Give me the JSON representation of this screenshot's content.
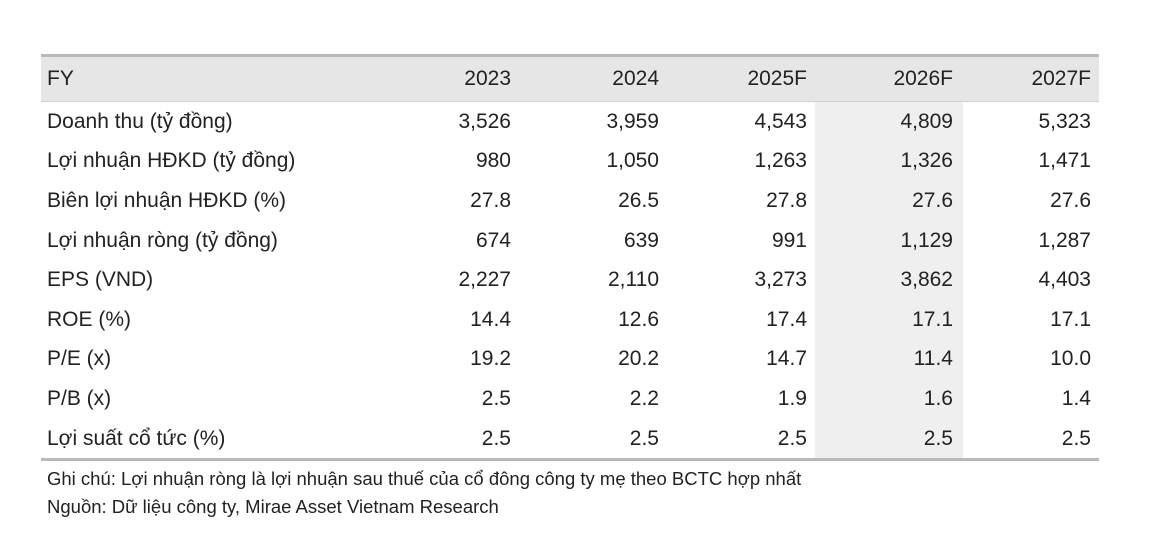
{
  "table": {
    "header": [
      "FY",
      "2023",
      "2024",
      "2025F",
      "2026F",
      "2027F"
    ],
    "rows": [
      {
        "label": "Doanh thu (tỷ đồng)",
        "values": [
          "3,526",
          "3,959",
          "4,543",
          "4,809",
          "5,323"
        ]
      },
      {
        "label": "Lợi nhuận HĐKD (tỷ đồng)",
        "values": [
          "980",
          "1,050",
          "1,263",
          "1,326",
          "1,471"
        ]
      },
      {
        "label": "Biên lợi nhuận HĐKD (%)",
        "values": [
          "27.8",
          "26.5",
          "27.8",
          "27.6",
          "27.6"
        ]
      },
      {
        "label": "Lợi nhuận ròng (tỷ đồng)",
        "values": [
          "674",
          "639",
          "991",
          "1,129",
          "1,287"
        ]
      },
      {
        "label": "EPS (VND)",
        "values": [
          "2,227",
          "2,110",
          "3,273",
          "3,862",
          "4,403"
        ]
      },
      {
        "label": "ROE (%)",
        "values": [
          "14.4",
          "12.6",
          "17.4",
          "17.1",
          "17.1"
        ]
      },
      {
        "label": "P/E (x)",
        "values": [
          "19.2",
          "20.2",
          "14.7",
          "11.4",
          "10.0"
        ]
      },
      {
        "label": "P/B (x)",
        "values": [
          "2.5",
          "2.2",
          "1.9",
          "1.6",
          "1.4"
        ]
      },
      {
        "label": "Lợi suất cổ tức (%)",
        "values": [
          "2.5",
          "2.5",
          "2.5",
          "2.5",
          "2.5"
        ]
      }
    ]
  },
  "notes": {
    "note": "Ghi chú: Lợi nhuận ròng là lợi nhuận sau thuế của cổ đông công ty mẹ theo BCTC hợp nhất",
    "source": "Nguồn: Dữ liệu công ty, Mirae Asset Vietnam Research"
  },
  "colors": {
    "header_bg": "#e6e6e6",
    "forecast_shade": "#efefef",
    "rule": "#b9b9b9"
  }
}
